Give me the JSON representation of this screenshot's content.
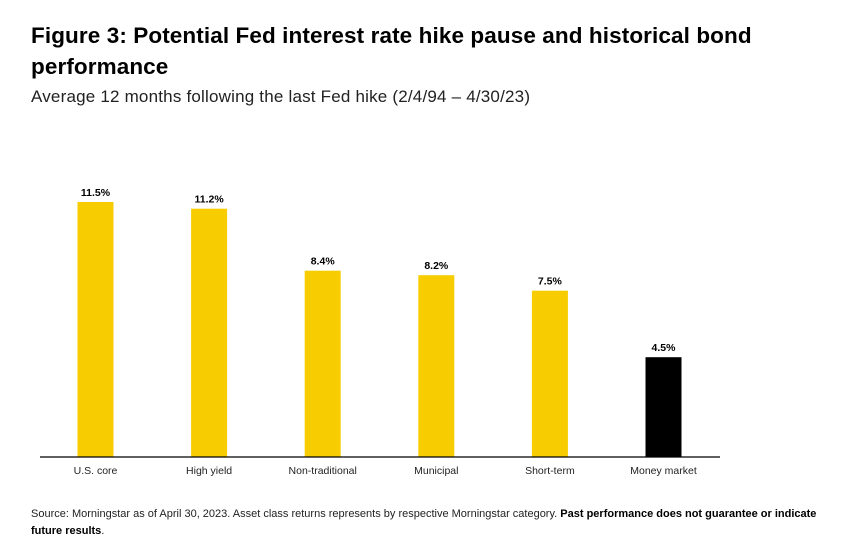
{
  "title": "Figure 3: Potential Fed interest rate hike pause and historical bond performance",
  "subtitle": "Average 12 months following the last Fed hike (2/4/94 – 4/30/23)",
  "footnote": {
    "text": "Source: Morningstar as of April 30, 2023. Asset class returns represents by respective Morningstar category. ",
    "bold": "Past performance does not guarantee or indicate future results",
    "end": "."
  },
  "colors": {
    "bar_default": "#F7CC00",
    "bar_highlight": "#000000",
    "axis": "#000000"
  },
  "chart_data": {
    "type": "bar",
    "title": "Figure 3: Potential Fed interest rate hike pause and historical bond performance",
    "subtitle": "Average 12 months following the last Fed hike (2/4/94 – 4/30/23)",
    "categories": [
      "U.S. core",
      "High yield",
      "Non-traditional",
      "Municipal",
      "Short-term",
      "Money market"
    ],
    "values": [
      11.5,
      11.2,
      8.4,
      8.2,
      7.5,
      4.5
    ],
    "value_labels": [
      "11.5%",
      "11.2%",
      "8.4%",
      "8.2%",
      "7.5%",
      "4.5%"
    ],
    "highlight_category": "Money market",
    "unit": "%",
    "ylim": [
      0,
      11.5
    ],
    "grid": false,
    "legend": "none",
    "xlabel": "",
    "ylabel": ""
  }
}
